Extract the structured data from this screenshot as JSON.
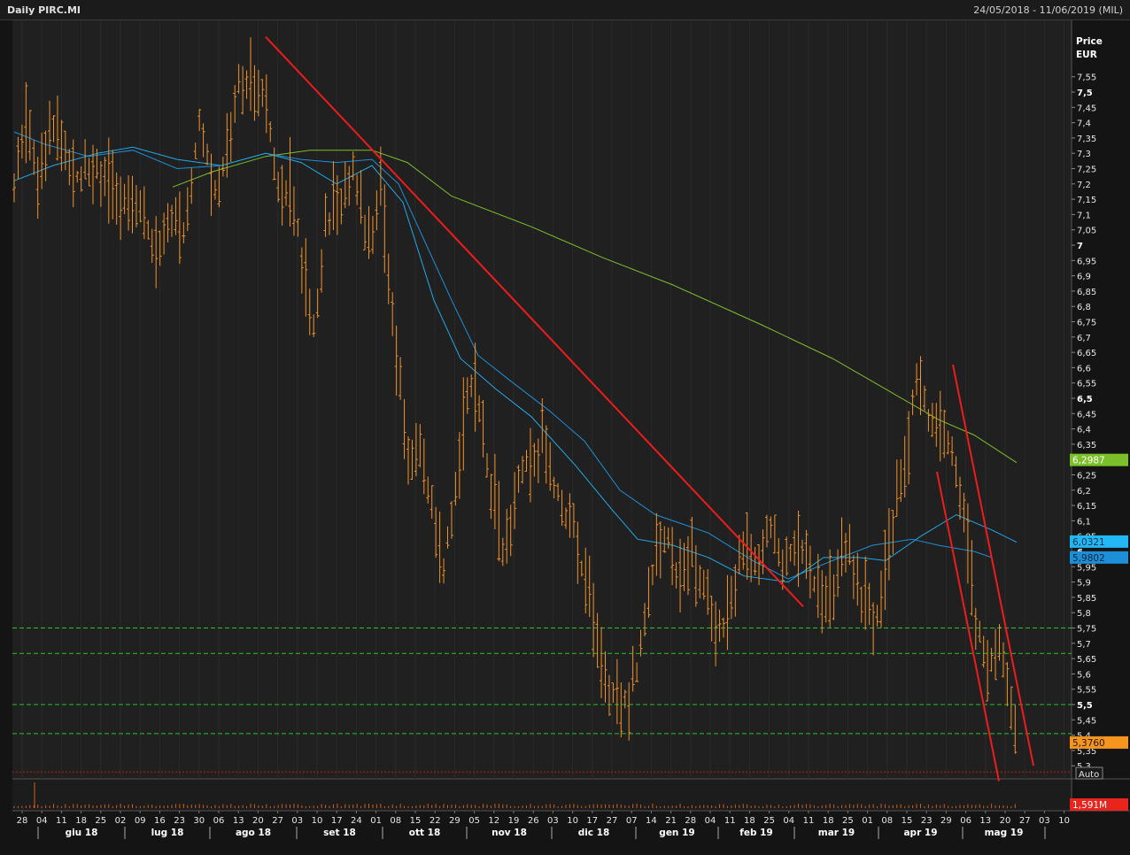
{
  "window": {
    "title": "Daily PIRC.MI",
    "date_range": "24/05/2018 - 11/06/2019 (MIL)"
  },
  "axis": {
    "price_label_line1": "Price",
    "price_label_line2": "EUR",
    "auto_label": "Auto"
  },
  "chart_data": {
    "type": "ohlc",
    "y_axis": {
      "min": 5.27,
      "max": 7.6,
      "step": 0.05,
      "tick_labels": [
        "7,55",
        "7,5",
        "7,45",
        "7,4",
        "7,35",
        "7,3",
        "7,25",
        "7,2",
        "7,15",
        "7,1",
        "7,05",
        "7",
        "6,95",
        "6,9",
        "6,85",
        "6,8",
        "6,75",
        "6,7",
        "6,65",
        "6,6",
        "6,55",
        "6,5",
        "6,45",
        "6,4",
        "6,35",
        "6,3",
        "6,25",
        "6,2",
        "6,15",
        "6,1",
        "6,05",
        "6",
        "5,95",
        "5,9",
        "5,85",
        "5,8",
        "5,75",
        "5,7",
        "5,65",
        "5,6",
        "5,55",
        "5,5",
        "5,45",
        "5,4",
        "5,35",
        "5,3"
      ],
      "bold_labels": [
        "7,5",
        "7",
        "6,5",
        "6",
        "5,5"
      ]
    },
    "x_axis": {
      "day_labels": [
        "28",
        "04",
        "11",
        "18",
        "25",
        "02",
        "09",
        "16",
        "23",
        "30",
        "06",
        "13",
        "20",
        "27",
        "03",
        "10",
        "17",
        "24",
        "01",
        "08",
        "15",
        "22",
        "29",
        "05",
        "12",
        "19",
        "26",
        "03",
        "10",
        "17",
        "27",
        "07",
        "14",
        "21",
        "28",
        "04",
        "11",
        "18",
        "25",
        "04",
        "11",
        "18",
        "25",
        "01",
        "08",
        "15",
        "23",
        "29",
        "06",
        "13",
        "20",
        "27",
        "03",
        "10"
      ],
      "month_labels": [
        "giu 18",
        "lug 18",
        "ago 18",
        "set 18",
        "ott 18",
        "nov 18",
        "dic 18",
        "gen 19",
        "feb 19",
        "mar 19",
        "apr 19",
        "mag 19"
      ]
    },
    "last_values": {
      "ma_long": "6,2987",
      "ma_mid": "6,0321",
      "ma_short": "5,9802",
      "close": "5,3760",
      "volume": "1,591M"
    },
    "colors": {
      "bars": "#f0932b",
      "ma_long": "#7bbf2a",
      "ma_mid": "#22a9e8",
      "ma_short": "#1d8fd8",
      "trendline": "#ee1c1c",
      "support": "#29c229",
      "close_tag": "#f7941d",
      "volume_tag": "#e8241c"
    },
    "support_levels": [
      5.75,
      5.667,
      5.5,
      5.405
    ],
    "baseline_level": 5.3,
    "trendlines": [
      {
        "from": [
          "ago 18 wk4",
          7.68
        ],
        "to": [
          "mar 19 wk1",
          5.82
        ]
      },
      {
        "from": [
          "apr 19 wk4",
          6.6
        ],
        "to": [
          "mag 19 wk4",
          5.3
        ]
      },
      {
        "from": [
          "apr 19 wk3",
          6.26
        ],
        "to": [
          "mag 19 wk3",
          5.26
        ]
      }
    ]
  }
}
